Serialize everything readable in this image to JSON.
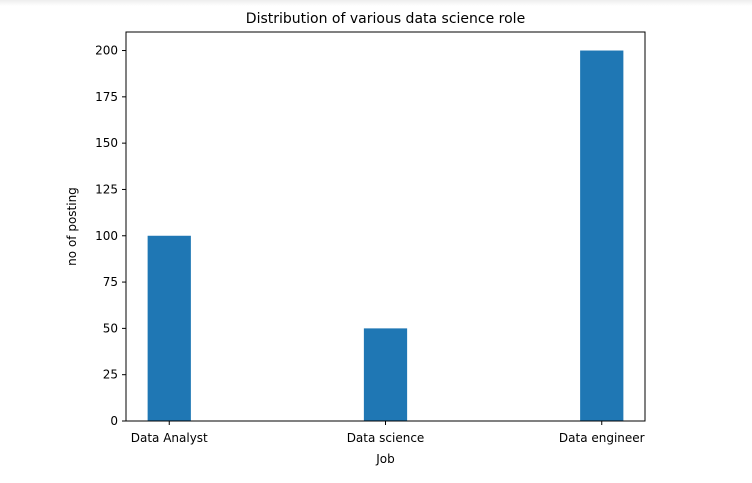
{
  "chart_data": {
    "type": "bar",
    "title": "Distribution of various data science role",
    "xlabel": "Job",
    "ylabel": "no of posting",
    "categories": [
      "Data Analyst",
      "Data science",
      "Data engineer"
    ],
    "values": [
      100,
      50,
      200
    ],
    "ylim": [
      0,
      210
    ],
    "yticks": [
      0,
      25,
      50,
      75,
      100,
      125,
      150,
      175,
      200
    ],
    "bar_color": "#1f77b4",
    "grid": false,
    "legend": "none"
  }
}
